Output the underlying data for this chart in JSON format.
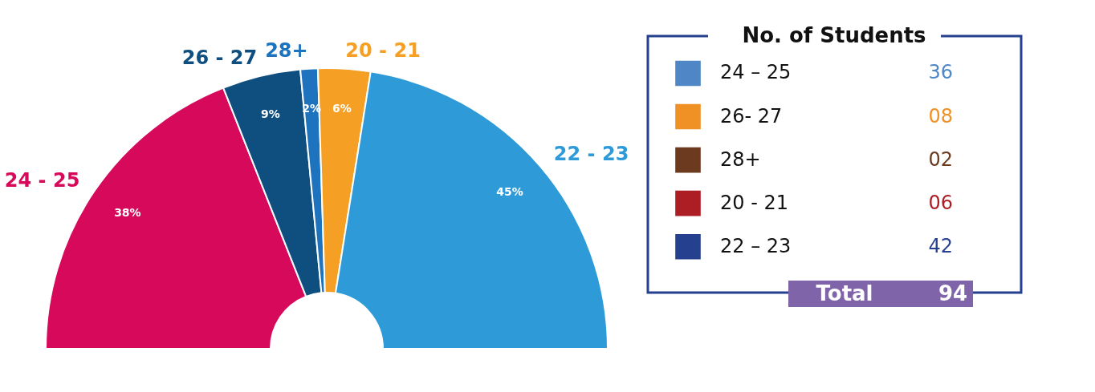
{
  "chart_data": [
    {
      "type": "donut",
      "categories": [
        "24 - 25",
        "26 - 27",
        "28+",
        "20 - 21",
        "22 - 23"
      ],
      "values": [
        38,
        9,
        2,
        6,
        45
      ],
      "colors": [
        "#d6095a",
        "#0f4f7f",
        "#1e73be",
        "#f5a024",
        "#2e9ad8"
      ],
      "value_labels": [
        "38%",
        "9%",
        "2%",
        "6%",
        "45%"
      ]
    },
    {
      "type": "other",
      "title": "No. of Students",
      "categories": [
        "24 – 25",
        "26- 27",
        "28+",
        "20 - 21",
        "22 – 23"
      ],
      "values": [
        36,
        8,
        2,
        6,
        42
      ],
      "value_labels": [
        "36",
        "08",
        "02",
        "06",
        "42"
      ],
      "colors": [
        "#4f86c6",
        "#ef9125",
        "#6b3a1f",
        "#ad1d24",
        "#25408f"
      ],
      "annotations": [
        "Total",
        "94"
      ]
    }
  ]
}
